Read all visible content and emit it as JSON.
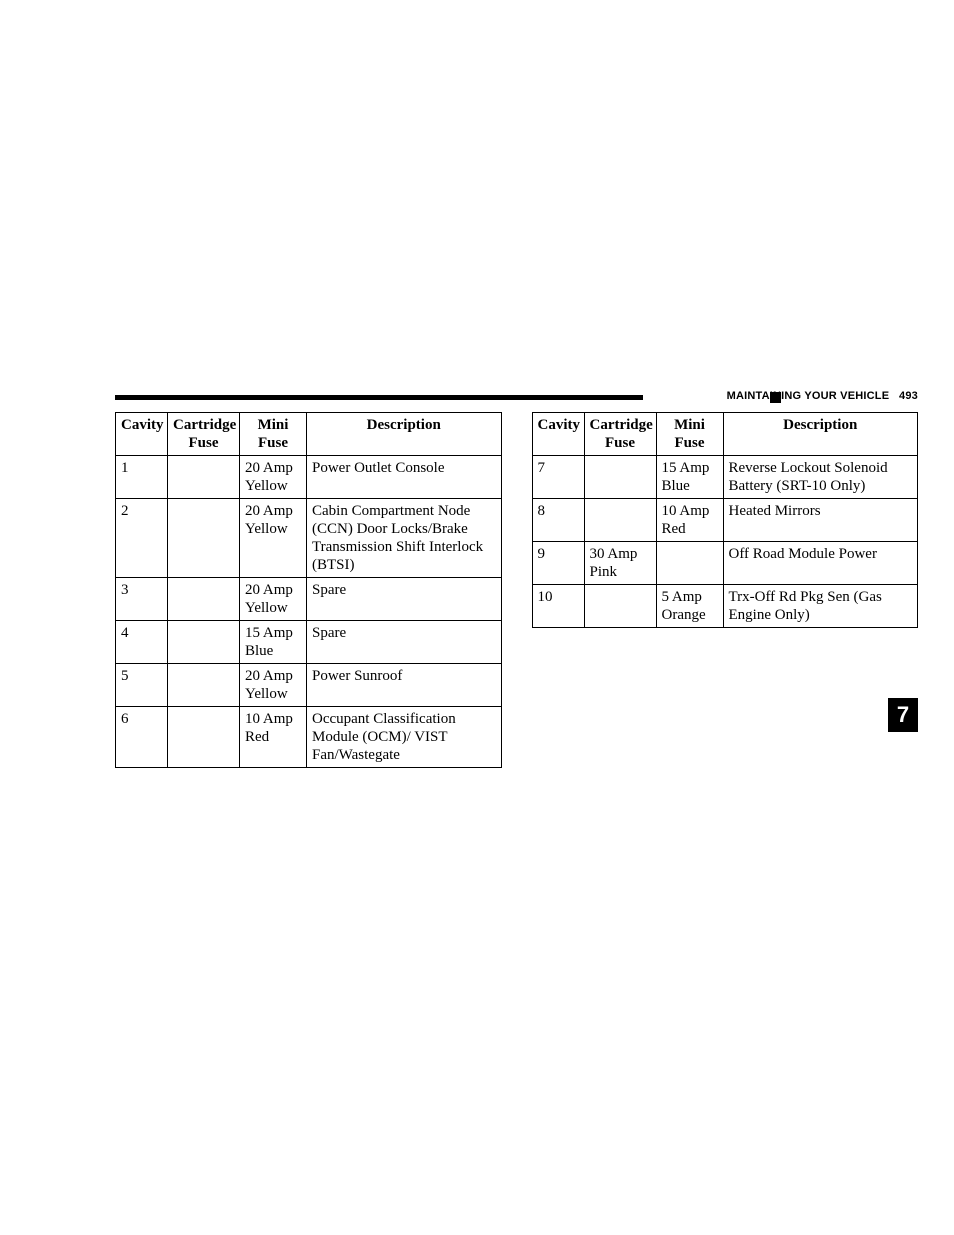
{
  "header": {
    "title": "MAINTAINING YOUR VEHICLE",
    "page_number": "493"
  },
  "section_tab": "7",
  "table_headers": {
    "cavity": "Cavity",
    "cartridge_l1": "Cartridge",
    "cartridge_l2": "Fuse",
    "mini_l1": "Mini",
    "mini_l2": "Fuse",
    "description": "Description"
  },
  "left_table": {
    "rows": [
      {
        "cavity": "1",
        "cartridge": "",
        "mini_l1": "20 Amp",
        "mini_l2": "Yellow",
        "desc": "Power Outlet Console"
      },
      {
        "cavity": "2",
        "cartridge": "",
        "mini_l1": "20 Amp",
        "mini_l2": "Yellow",
        "desc": "Cabin Compartment Node (CCN) Door Locks/Brake Transmission Shift Interlock (BTSI)"
      },
      {
        "cavity": "3",
        "cartridge": "",
        "mini_l1": "20 Amp",
        "mini_l2": "Yellow",
        "desc": "Spare"
      },
      {
        "cavity": "4",
        "cartridge": "",
        "mini_l1": "15 Amp",
        "mini_l2": "Blue",
        "desc": "Spare"
      },
      {
        "cavity": "5",
        "cartridge": "",
        "mini_l1": "20 Amp",
        "mini_l2": "Yellow",
        "desc": "Power Sunroof"
      },
      {
        "cavity": "6",
        "cartridge": "",
        "mini_l1": "10 Amp",
        "mini_l2": "Red",
        "desc": "Occupant Classification Module (OCM)/ VIST Fan/Wastegate"
      }
    ]
  },
  "right_table": {
    "rows": [
      {
        "cavity": "7",
        "cartridge_l1": "",
        "cartridge_l2": "",
        "mini_l1": "15 Amp",
        "mini_l2": "Blue",
        "desc": "Reverse Lockout Solenoid Battery (SRT-10 Only)"
      },
      {
        "cavity": "8",
        "cartridge_l1": "",
        "cartridge_l2": "",
        "mini_l1": "10 Amp",
        "mini_l2": "Red",
        "desc": "Heated Mirrors"
      },
      {
        "cavity": "9",
        "cartridge_l1": "30 Amp",
        "cartridge_l2": "Pink",
        "mini_l1": "",
        "mini_l2": "",
        "desc": "Off Road Module Power"
      },
      {
        "cavity": "10",
        "cartridge_l1": "",
        "cartridge_l2": "",
        "mini_l1": "5 Amp",
        "mini_l2": "Orange",
        "desc": "Trx-Off Rd Pkg Sen (Gas Engine Only)"
      }
    ]
  }
}
